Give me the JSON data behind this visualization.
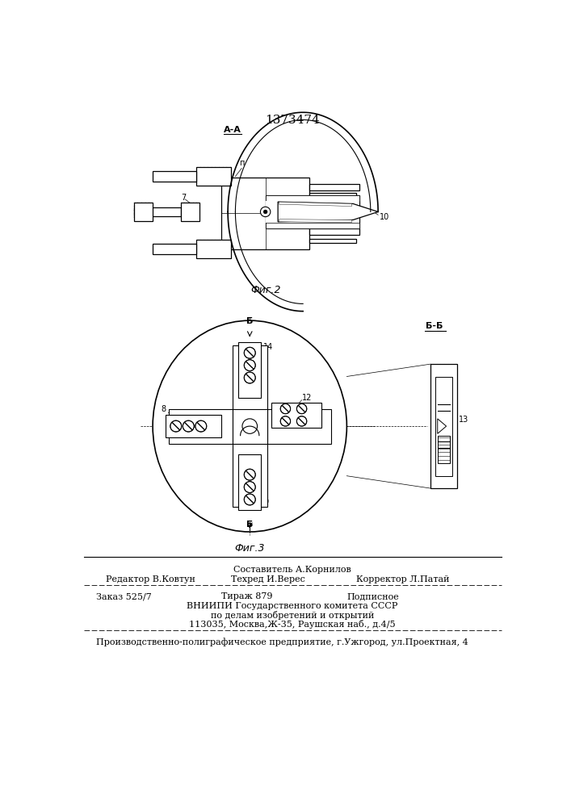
{
  "patent_number": "1373474",
  "background_color": "#ffffff",
  "line_color": "#000000",
  "fig1_label": "А-А",
  "fig2_label": "Б-Б",
  "fig1_caption": "Фиг.2",
  "fig2_caption": "Фиг.3",
  "footer": {
    "composer": "Составитель А.Корнилов",
    "editor": "Редактор В.Ковтун",
    "techred": "Техред И.Верес",
    "corrector": "Корректор Л.Патай",
    "order": "Заказ 525/7",
    "tirazh": "Тираж 879",
    "podpisnoe": "Подписное",
    "vnipi_line1": "ВНИИПИ Государственного комитета СССР",
    "vnipi_line2": "по делам изобретений и открытий",
    "vnipi_line3": "113035, Москва,Ж-35, Раушская наб., д.4/5",
    "printer": "Производственно-полиграфическое предприятие, г.Ужгород, ул.Проектная, 4"
  }
}
